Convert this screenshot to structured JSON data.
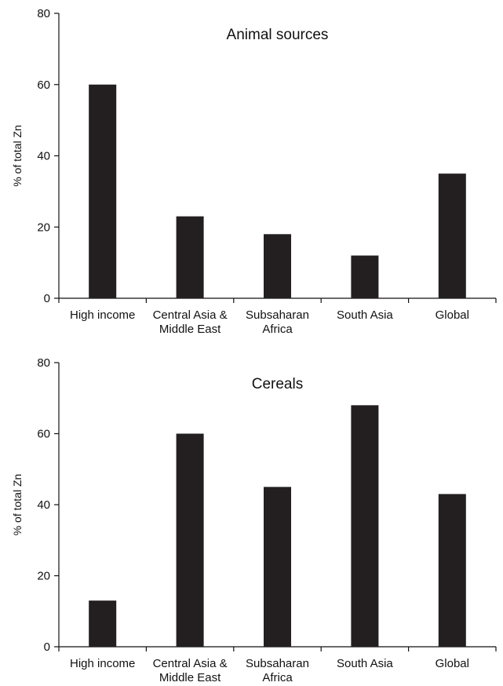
{
  "chart_data": [
    {
      "type": "bar",
      "title": "Animal sources",
      "ylabel": "% of total Zn",
      "xlabel": "",
      "ylim": [
        0,
        80
      ],
      "yticks": [
        0,
        20,
        40,
        60,
        80
      ],
      "categories": [
        [
          "High income"
        ],
        [
          "Central Asia &",
          "Middle East"
        ],
        [
          "Subsaharan",
          "Africa"
        ],
        [
          "South Asia"
        ],
        [
          "Global"
        ]
      ],
      "values": [
        60,
        23,
        18,
        12,
        35
      ],
      "bar_color": "#231f20",
      "grid": false
    },
    {
      "type": "bar",
      "title": "Cereals",
      "ylabel": "% of total Zn",
      "xlabel": "",
      "ylim": [
        0,
        80
      ],
      "yticks": [
        0,
        20,
        40,
        60,
        80
      ],
      "categories": [
        [
          "High income"
        ],
        [
          "Central Asia &",
          "Middle East"
        ],
        [
          "Subsaharan",
          "Africa"
        ],
        [
          "South Asia"
        ],
        [
          "Global"
        ]
      ],
      "values": [
        13,
        60,
        45,
        68,
        43
      ],
      "bar_color": "#231f20",
      "grid": false
    }
  ]
}
